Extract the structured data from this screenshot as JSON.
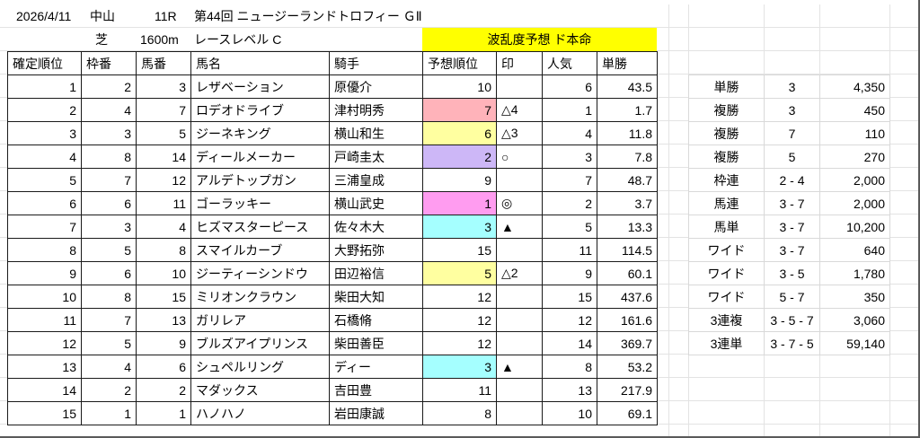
{
  "meta": {
    "date": "2026/4/11",
    "track": "中山",
    "race_number": "11R",
    "race_title": "第44回 ニュージーランドトロフィー ＧⅡ",
    "surface": "芝",
    "distance": "1600m",
    "race_level": "レースレベル C",
    "prediction_label": "波乱度予想 ド本命"
  },
  "colors": {
    "banner_bg": "#ffff00",
    "table_border": "#1a1a1a",
    "grid_line": "#e3e3e3"
  },
  "race_table": {
    "headers": [
      "確定順位",
      "枠番",
      "馬番",
      "馬名",
      "騎手",
      "予想順位",
      "印",
      "人気",
      "単勝"
    ],
    "rows": [
      {
        "finish": "1",
        "frame": "2",
        "number": "3",
        "horse": "レザベーション",
        "jockey": "原優介",
        "pred": "10",
        "mark": "",
        "pop": "6",
        "odds": "43.5",
        "pred_bg": ""
      },
      {
        "finish": "2",
        "frame": "4",
        "number": "7",
        "horse": "ロデオドライブ",
        "jockey": "津村明秀",
        "pred": "7",
        "mark": "△4",
        "pop": "1",
        "odds": "1.7",
        "pred_bg": "#ffb3ba"
      },
      {
        "finish": "3",
        "frame": "3",
        "number": "5",
        "horse": "ジーネキング",
        "jockey": "横山和生",
        "pred": "6",
        "mark": "△3",
        "pop": "4",
        "odds": "11.8",
        "pred_bg": "#ffffa0"
      },
      {
        "finish": "4",
        "frame": "8",
        "number": "14",
        "horse": "ディールメーカー",
        "jockey": "戸崎圭太",
        "pred": "2",
        "mark": "○",
        "pop": "3",
        "odds": "7.8",
        "pred_bg": "#cdb7f7"
      },
      {
        "finish": "5",
        "frame": "7",
        "number": "12",
        "horse": "アルデトップガン",
        "jockey": "三浦皇成",
        "pred": "9",
        "mark": "",
        "pop": "7",
        "odds": "48.7",
        "pred_bg": ""
      },
      {
        "finish": "6",
        "frame": "6",
        "number": "11",
        "horse": "ゴーラッキー",
        "jockey": "横山武史",
        "pred": "1",
        "mark": "◎",
        "pop": "2",
        "odds": "3.7",
        "pred_bg": "#ff9cf0"
      },
      {
        "finish": "7",
        "frame": "3",
        "number": "4",
        "horse": "ヒズマスターピース",
        "jockey": "佐々木大",
        "pred": "3",
        "mark": "▲",
        "pop": "5",
        "odds": "13.3",
        "pred_bg": "#a5ffff"
      },
      {
        "finish": "8",
        "frame": "5",
        "number": "8",
        "horse": "スマイルカーブ",
        "jockey": "大野拓弥",
        "pred": "15",
        "mark": "",
        "pop": "11",
        "odds": "114.5",
        "pred_bg": ""
      },
      {
        "finish": "9",
        "frame": "6",
        "number": "10",
        "horse": "ジーティーシンドウ",
        "jockey": "田辺裕信",
        "pred": "5",
        "mark": "△2",
        "pop": "9",
        "odds": "60.1",
        "pred_bg": "#ffffa0"
      },
      {
        "finish": "10",
        "frame": "8",
        "number": "15",
        "horse": "ミリオンクラウン",
        "jockey": "柴田大知",
        "pred": "12",
        "mark": "",
        "pop": "15",
        "odds": "437.6",
        "pred_bg": ""
      },
      {
        "finish": "11",
        "frame": "7",
        "number": "13",
        "horse": "ガリレア",
        "jockey": "石橋脩",
        "pred": "12",
        "mark": "",
        "pop": "12",
        "odds": "161.6",
        "pred_bg": ""
      },
      {
        "finish": "12",
        "frame": "5",
        "number": "9",
        "horse": "ブルズアイプリンス",
        "jockey": "柴田善臣",
        "pred": "12",
        "mark": "",
        "pop": "14",
        "odds": "369.7",
        "pred_bg": ""
      },
      {
        "finish": "13",
        "frame": "4",
        "number": "6",
        "horse": "シュペルリング",
        "jockey": "ディー",
        "pred": "3",
        "mark": "▲",
        "pop": "8",
        "odds": "53.2",
        "pred_bg": "#a5ffff"
      },
      {
        "finish": "14",
        "frame": "2",
        "number": "2",
        "horse": "マダックス",
        "jockey": "吉田豊",
        "pred": "11",
        "mark": "",
        "pop": "13",
        "odds": "217.9",
        "pred_bg": ""
      },
      {
        "finish": "15",
        "frame": "1",
        "number": "1",
        "horse": "ハノハノ",
        "jockey": "岩田康誠",
        "pred": "8",
        "mark": "",
        "pop": "10",
        "odds": "69.1",
        "pred_bg": ""
      }
    ]
  },
  "payout_table": {
    "rows": [
      {
        "type": "単勝",
        "combo": "3",
        "amount": "4,350"
      },
      {
        "type": "複勝",
        "combo": "3",
        "amount": "450"
      },
      {
        "type": "複勝",
        "combo": "7",
        "amount": "110"
      },
      {
        "type": "複勝",
        "combo": "5",
        "amount": "270"
      },
      {
        "type": "枠連",
        "combo": "2 - 4",
        "amount": "2,000"
      },
      {
        "type": "馬連",
        "combo": "3 - 7",
        "amount": "2,000"
      },
      {
        "type": "馬単",
        "combo": "3 - 7",
        "amount": "10,200"
      },
      {
        "type": "ワイド",
        "combo": "3 - 7",
        "amount": "640"
      },
      {
        "type": "ワイド",
        "combo": "3 - 5",
        "amount": "1,780"
      },
      {
        "type": "ワイド",
        "combo": "5 - 7",
        "amount": "350"
      },
      {
        "type": "3連複",
        "combo": "3 - 5 - 7",
        "amount": "3,060"
      },
      {
        "type": "3連単",
        "combo": "3 - 7 - 5",
        "amount": "59,140"
      }
    ]
  }
}
